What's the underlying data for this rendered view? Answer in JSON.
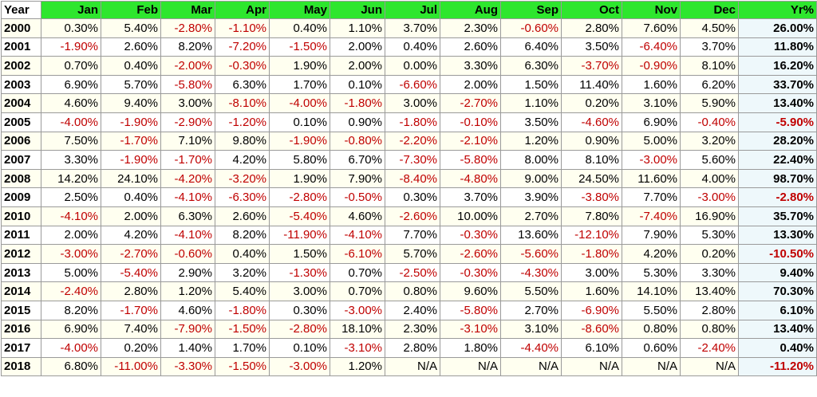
{
  "headers": [
    "Year",
    "Jan",
    "Feb",
    "Mar",
    "Apr",
    "May",
    "Jun",
    "Jul",
    "Aug",
    "Sep",
    "Oct",
    "Nov",
    "Dec",
    "Yr%"
  ],
  "rows": [
    {
      "year": "2000",
      "values": [
        "0.30%",
        "5.40%",
        "-2.80%",
        "-1.10%",
        "0.40%",
        "1.10%",
        "3.70%",
        "2.30%",
        "-0.60%",
        "2.80%",
        "7.60%",
        "4.50%"
      ],
      "total": "26.00%"
    },
    {
      "year": "2001",
      "values": [
        "-1.90%",
        "2.60%",
        "8.20%",
        "-7.20%",
        "-1.50%",
        "2.00%",
        "0.40%",
        "2.60%",
        "6.40%",
        "3.50%",
        "-6.40%",
        "3.70%"
      ],
      "total": "11.80%"
    },
    {
      "year": "2002",
      "values": [
        "0.70%",
        "0.40%",
        "-2.00%",
        "-0.30%",
        "1.90%",
        "2.00%",
        "0.00%",
        "3.30%",
        "6.30%",
        "-3.70%",
        "-0.90%",
        "8.10%"
      ],
      "total": "16.20%"
    },
    {
      "year": "2003",
      "values": [
        "6.90%",
        "5.70%",
        "-5.80%",
        "6.30%",
        "1.70%",
        "0.10%",
        "-6.60%",
        "2.00%",
        "1.50%",
        "11.40%",
        "1.60%",
        "6.20%"
      ],
      "total": "33.70%"
    },
    {
      "year": "2004",
      "values": [
        "4.60%",
        "9.40%",
        "3.00%",
        "-8.10%",
        "-4.00%",
        "-1.80%",
        "3.00%",
        "-2.70%",
        "1.10%",
        "0.20%",
        "3.10%",
        "5.90%"
      ],
      "total": "13.40%"
    },
    {
      "year": "2005",
      "values": [
        "-4.00%",
        "-1.90%",
        "-2.90%",
        "-1.20%",
        "0.10%",
        "0.90%",
        "-1.80%",
        "-0.10%",
        "3.50%",
        "-4.60%",
        "6.90%",
        "-0.40%"
      ],
      "total": "-5.90%"
    },
    {
      "year": "2006",
      "values": [
        "7.50%",
        "-1.70%",
        "7.10%",
        "9.80%",
        "-1.90%",
        "-0.80%",
        "-2.20%",
        "-2.10%",
        "1.20%",
        "0.90%",
        "5.00%",
        "3.20%"
      ],
      "total": "28.20%"
    },
    {
      "year": "2007",
      "values": [
        "3.30%",
        "-1.90%",
        "-1.70%",
        "4.20%",
        "5.80%",
        "6.70%",
        "-7.30%",
        "-5.80%",
        "8.00%",
        "8.10%",
        "-3.00%",
        "5.60%"
      ],
      "total": "22.40%"
    },
    {
      "year": "2008",
      "values": [
        "14.20%",
        "24.10%",
        "-4.20%",
        "-3.20%",
        "1.90%",
        "7.90%",
        "-8.40%",
        "-4.80%",
        "9.00%",
        "24.50%",
        "11.60%",
        "4.00%"
      ],
      "total": "98.70%"
    },
    {
      "year": "2009",
      "values": [
        "2.50%",
        "0.40%",
        "-4.10%",
        "-6.30%",
        "-2.80%",
        "-0.50%",
        "0.30%",
        "3.70%",
        "3.90%",
        "-3.80%",
        "7.70%",
        "-3.00%"
      ],
      "total": "-2.80%"
    },
    {
      "year": "2010",
      "values": [
        "-4.10%",
        "2.00%",
        "6.30%",
        "2.60%",
        "-5.40%",
        "4.60%",
        "-2.60%",
        "10.00%",
        "2.70%",
        "7.80%",
        "-7.40%",
        "16.90%"
      ],
      "total": "35.70%"
    },
    {
      "year": "2011",
      "values": [
        "2.00%",
        "4.20%",
        "-4.10%",
        "8.20%",
        "-11.90%",
        "-4.10%",
        "7.70%",
        "-0.30%",
        "13.60%",
        "-12.10%",
        "7.90%",
        "5.30%"
      ],
      "total": "13.30%"
    },
    {
      "year": "2012",
      "values": [
        "-3.00%",
        "-2.70%",
        "-0.60%",
        "0.40%",
        "1.50%",
        "-6.10%",
        "5.70%",
        "-2.60%",
        "-5.60%",
        "-1.80%",
        "4.20%",
        "0.20%"
      ],
      "total": "-10.50%"
    },
    {
      "year": "2013",
      "values": [
        "5.00%",
        "-5.40%",
        "2.90%",
        "3.20%",
        "-1.30%",
        "0.70%",
        "-2.50%",
        "-0.30%",
        "-4.30%",
        "3.00%",
        "5.30%",
        "3.30%"
      ],
      "total": "9.40%"
    },
    {
      "year": "2014",
      "values": [
        "-2.40%",
        "2.80%",
        "1.20%",
        "5.40%",
        "3.00%",
        "0.70%",
        "0.80%",
        "9.60%",
        "5.50%",
        "1.60%",
        "14.10%",
        "13.40%"
      ],
      "total": "70.30%"
    },
    {
      "year": "2015",
      "values": [
        "8.20%",
        "-1.70%",
        "4.60%",
        "-1.80%",
        "0.30%",
        "-3.00%",
        "2.40%",
        "-5.80%",
        "2.70%",
        "-6.90%",
        "5.50%",
        "2.80%"
      ],
      "total": "6.10%"
    },
    {
      "year": "2016",
      "values": [
        "6.90%",
        "7.40%",
        "-7.90%",
        "-1.50%",
        "-2.80%",
        "18.10%",
        "2.30%",
        "-3.10%",
        "3.10%",
        "-8.60%",
        "0.80%",
        "0.80%"
      ],
      "total": "13.40%"
    },
    {
      "year": "2017",
      "values": [
        "-4.00%",
        "0.20%",
        "1.40%",
        "1.70%",
        "0.10%",
        "-3.10%",
        "2.80%",
        "1.80%",
        "-4.40%",
        "6.10%",
        "0.60%",
        "-2.40%"
      ],
      "total": "0.40%"
    },
    {
      "year": "2018",
      "values": [
        "6.80%",
        "-11.00%",
        "-3.30%",
        "-1.50%",
        "-3.00%",
        "1.20%",
        "N/A",
        "N/A",
        "N/A",
        "N/A",
        "N/A",
        "N/A"
      ],
      "total": "-11.20%"
    }
  ],
  "colors": {
    "header_bg": "#2ee62e",
    "negative_text": "#c00000",
    "positive_text": "#000000",
    "odd_row_bg": "#fffff0",
    "even_row_bg": "#ffffff",
    "yr_column_bg": "#eef8fb",
    "border": "#9a9a9a"
  }
}
